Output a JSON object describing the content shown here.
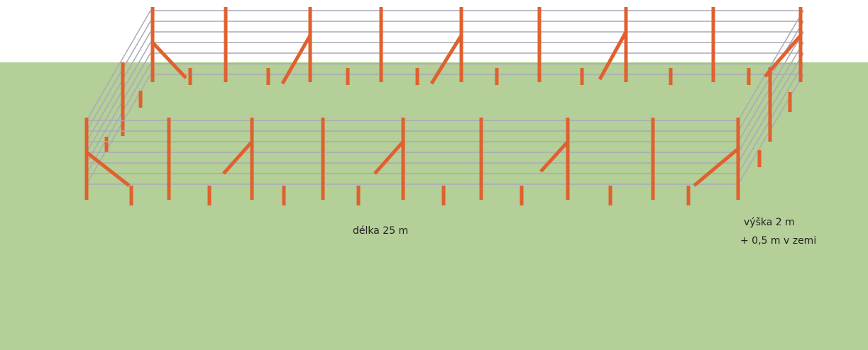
{
  "labels": {
    "length": "délka 25 m",
    "height": "výška 2 m",
    "depth": "+ 0,5 m v zemi"
  }
}
